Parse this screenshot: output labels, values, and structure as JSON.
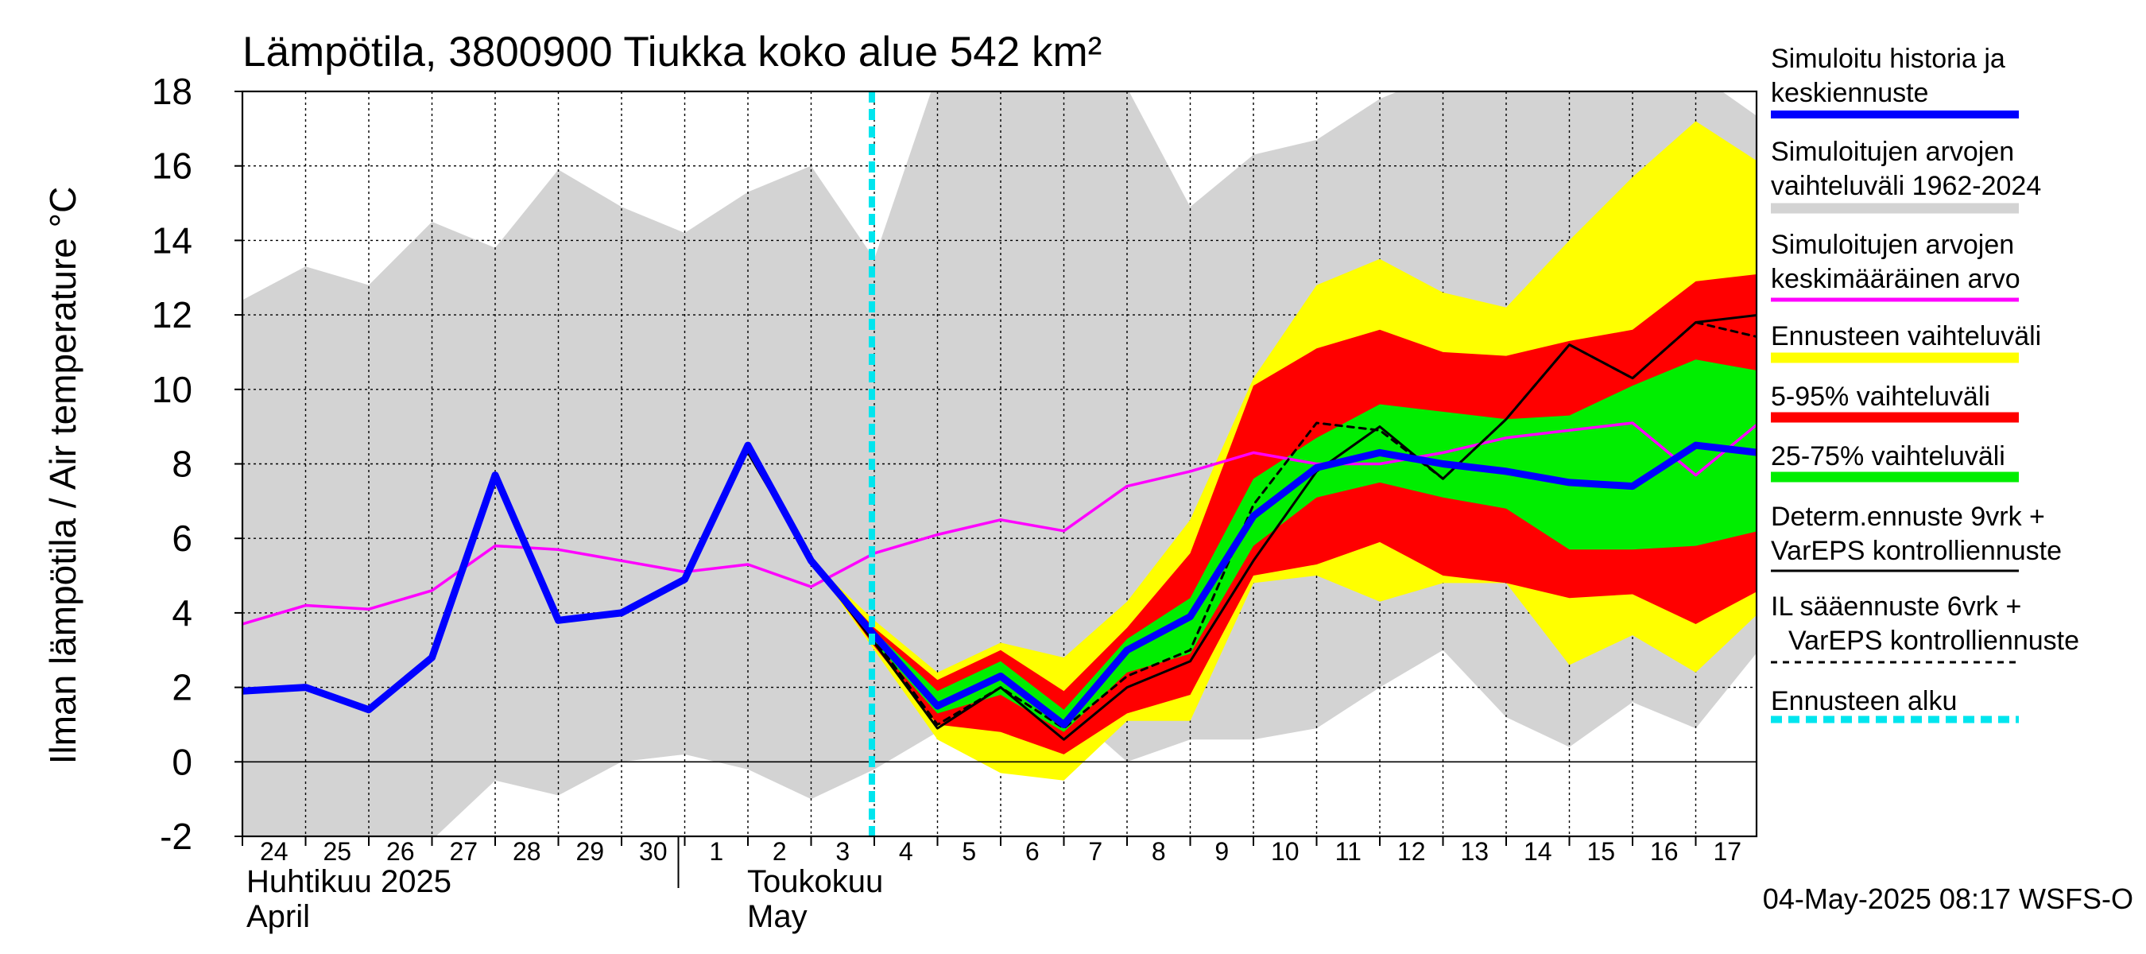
{
  "chart_data": {
    "type": "line",
    "title": "Lämpötila, 3800900 Tiukka koko alue 542 km²",
    "ylabel": "Ilman lämpötila / Air temperature    °C",
    "ylim": [
      -2,
      18
    ],
    "yticks": [
      -2,
      0,
      2,
      4,
      6,
      8,
      10,
      12,
      14,
      16,
      18
    ],
    "x_start": "2025-04-24",
    "x_end": "2025-05-17",
    "x_tick_labels": [
      "24",
      "25",
      "26",
      "27",
      "28",
      "29",
      "30",
      "1",
      "2",
      "3",
      "4",
      "5",
      "6",
      "7",
      "8",
      "9",
      "10",
      "11",
      "12",
      "13",
      "14",
      "15",
      "16",
      "17"
    ],
    "month_labels": [
      {
        "fi": "Huhtikuu  2025",
        "en": "April"
      },
      {
        "fi": "Toukokuu",
        "en": "May"
      }
    ],
    "forecast_start": "2025-05-04",
    "timestamp": "04-May-2025 08:17 WSFS-O",
    "legend": [
      {
        "label": "Simuloitu historia ja keskiennuste",
        "color": "#0000ff",
        "style": "thick"
      },
      {
        "label": "Simuloitujen arvojen vaihteluväli 1962-2024",
        "color": "#d3d3d3",
        "style": "thick"
      },
      {
        "label": "Simuloitujen arvojen keskimääräinen arvo",
        "color": "#ff00ff",
        "style": "solid"
      },
      {
        "label": "Ennusteen vaihteluväli",
        "color": "#ffff00",
        "style": "thick"
      },
      {
        "label": "5-95% vaihteluväli",
        "color": "#ff0000",
        "style": "thick"
      },
      {
        "label": "25-75% vaihteluväli",
        "color": "#00ee00",
        "style": "thick"
      },
      {
        "label": "Determ.ennuste 9vrk + VarEPS kontrolliennuste",
        "color": "#000000",
        "style": "solid"
      },
      {
        "label": "IL sääennuste 6vrk + VarEPS kontrolliennuste",
        "color": "#000000",
        "style": "dashed"
      },
      {
        "label": "Ennusteen alku",
        "color": "#00e5ee",
        "style": "dotted"
      }
    ],
    "historical_range": {
      "x": [
        "2025-04-24",
        "2025-04-25",
        "2025-04-26",
        "2025-04-27",
        "2025-04-28",
        "2025-04-29",
        "2025-04-30",
        "2025-05-01",
        "2025-05-02",
        "2025-05-03",
        "2025-05-04",
        "2025-05-05",
        "2025-05-06",
        "2025-05-07",
        "2025-05-08",
        "2025-05-09",
        "2025-05-10",
        "2025-05-11",
        "2025-05-12",
        "2025-05-13",
        "2025-05-14",
        "2025-05-15",
        "2025-05-16",
        "2025-05-17",
        "2025-05-18"
      ],
      "upper": [
        12.4,
        13.3,
        12.8,
        14.5,
        13.8,
        15.9,
        14.9,
        14.2,
        15.3,
        16.0,
        13.5,
        18.5,
        18.5,
        18.5,
        18.1,
        14.9,
        16.3,
        16.7,
        17.8,
        18.5,
        18.5,
        18.5,
        18.5,
        18.5,
        17.3
      ],
      "lower": [
        -2.4,
        -2.4,
        -2.4,
        -2.1,
        -0.5,
        -0.9,
        0.0,
        0.2,
        -0.2,
        -1.0,
        -0.2,
        0.8,
        0.5,
        1.5,
        0.0,
        0.6,
        0.6,
        0.9,
        2.0,
        3.0,
        1.2,
        0.4,
        1.6,
        0.9,
        3.0
      ]
    },
    "forecast_x": [
      "2025-05-03",
      "2025-05-04",
      "2025-05-05",
      "2025-05-06",
      "2025-05-07",
      "2025-05-08",
      "2025-05-09",
      "2025-05-10",
      "2025-05-11",
      "2025-05-12",
      "2025-05-13",
      "2025-05-14",
      "2025-05-15",
      "2025-05-16",
      "2025-05-17",
      "2025-05-18"
    ],
    "forecast_range": {
      "upper": [
        5.4,
        3.8,
        2.4,
        3.2,
        2.8,
        4.3,
        6.5,
        10.3,
        12.8,
        13.5,
        12.6,
        12.2,
        14.0,
        15.7,
        17.2,
        16.1
      ],
      "lower": [
        5.4,
        3.0,
        0.6,
        -0.3,
        -0.5,
        1.1,
        1.1,
        4.8,
        5.0,
        4.3,
        4.8,
        4.8,
        2.6,
        3.4,
        2.4,
        4.0
      ]
    },
    "range_5_95": {
      "upper": [
        5.4,
        3.6,
        2.2,
        3.0,
        1.9,
        3.6,
        5.6,
        10.1,
        11.1,
        11.6,
        11.0,
        10.9,
        11.3,
        11.6,
        12.9,
        13.1
      ],
      "lower": [
        5.4,
        3.1,
        1.0,
        0.8,
        0.2,
        1.3,
        1.8,
        5.0,
        5.3,
        5.9,
        5.0,
        4.8,
        4.4,
        4.5,
        3.7,
        4.6
      ]
    },
    "range_25_75": {
      "upper": [
        5.4,
        3.5,
        1.9,
        2.7,
        1.4,
        3.3,
        4.4,
        7.6,
        8.7,
        9.6,
        9.4,
        9.2,
        9.3,
        10.1,
        10.8,
        10.5
      ],
      "lower": [
        5.4,
        3.2,
        1.3,
        1.8,
        0.8,
        2.4,
        2.9,
        5.8,
        7.1,
        7.5,
        7.1,
        6.8,
        5.7,
        5.7,
        5.8,
        6.2
      ]
    },
    "series": [
      {
        "name": "Simuloitu historia ja keskiennuste",
        "color": "#0000ff",
        "x": [
          "2025-04-24",
          "2025-04-25",
          "2025-04-26",
          "2025-04-27",
          "2025-04-28",
          "2025-04-29",
          "2025-04-30",
          "2025-05-01",
          "2025-05-02",
          "2025-05-03",
          "2025-05-04",
          "2025-05-05",
          "2025-05-06",
          "2025-05-07",
          "2025-05-08",
          "2025-05-09",
          "2025-05-10",
          "2025-05-11",
          "2025-05-12",
          "2025-05-13",
          "2025-05-14",
          "2025-05-15",
          "2025-05-16",
          "2025-05-17",
          "2025-05-18"
        ],
        "values": [
          1.9,
          2.0,
          1.4,
          2.8,
          7.7,
          3.8,
          4.0,
          4.9,
          8.5,
          5.4,
          3.4,
          1.5,
          2.3,
          1.0,
          3.0,
          3.9,
          6.6,
          7.9,
          8.3,
          8.0,
          7.8,
          7.5,
          7.4,
          8.5,
          8.3
        ]
      },
      {
        "name": "Simuloitujen arvojen keskimääräinen arvo",
        "color": "#ff00ff",
        "x": [
          "2025-04-24",
          "2025-04-25",
          "2025-04-26",
          "2025-04-27",
          "2025-04-28",
          "2025-04-29",
          "2025-04-30",
          "2025-05-01",
          "2025-05-02",
          "2025-05-03",
          "2025-05-04",
          "2025-05-05",
          "2025-05-06",
          "2025-05-07",
          "2025-05-08",
          "2025-05-09",
          "2025-05-10",
          "2025-05-11",
          "2025-05-12",
          "2025-05-13",
          "2025-05-14",
          "2025-05-15",
          "2025-05-16",
          "2025-05-17",
          "2025-05-18"
        ],
        "values": [
          3.7,
          4.2,
          4.1,
          4.6,
          5.8,
          5.7,
          5.4,
          5.1,
          5.3,
          4.7,
          5.6,
          6.1,
          6.5,
          6.2,
          7.4,
          7.8,
          8.3,
          8.0,
          8.0,
          8.3,
          8.7,
          8.9,
          9.1,
          7.7,
          9.1
        ]
      },
      {
        "name": "Determ.ennuste 9vrk + VarEPS kontrolliennuste",
        "color": "#000000",
        "x": [
          "2025-05-02",
          "2025-05-03",
          "2025-05-04",
          "2025-05-05",
          "2025-05-06",
          "2025-05-07",
          "2025-05-08",
          "2025-05-09",
          "2025-05-10",
          "2025-05-11",
          "2025-05-12",
          "2025-05-13",
          "2025-05-14",
          "2025-05-15",
          "2025-05-16",
          "2025-05-17",
          "2025-05-18"
        ],
        "values": [
          8.3,
          5.4,
          3.2,
          0.9,
          2.0,
          0.6,
          2.0,
          2.7,
          5.4,
          7.8,
          9.0,
          7.6,
          9.2,
          11.2,
          10.3,
          11.8,
          12.0
        ]
      },
      {
        "name": "IL sääennuste 6vrk + VarEPS kontrolliennuste",
        "color": "#000000",
        "dashed": true,
        "x": [
          "2025-05-03",
          "2025-05-04",
          "2025-05-05",
          "2025-05-06",
          "2025-05-07",
          "2025-05-08",
          "2025-05-09",
          "2025-05-10",
          "2025-05-11",
          "2025-05-12",
          "2025-05-13",
          "2025-05-14",
          "2025-05-15",
          "2025-05-16",
          "2025-05-17",
          "2025-05-18"
        ],
        "values": [
          5.4,
          3.3,
          1.0,
          2.0,
          0.9,
          2.3,
          3.0,
          6.9,
          9.1,
          8.9,
          7.6,
          9.2,
          11.2,
          10.3,
          11.8,
          11.4
        ]
      }
    ]
  }
}
